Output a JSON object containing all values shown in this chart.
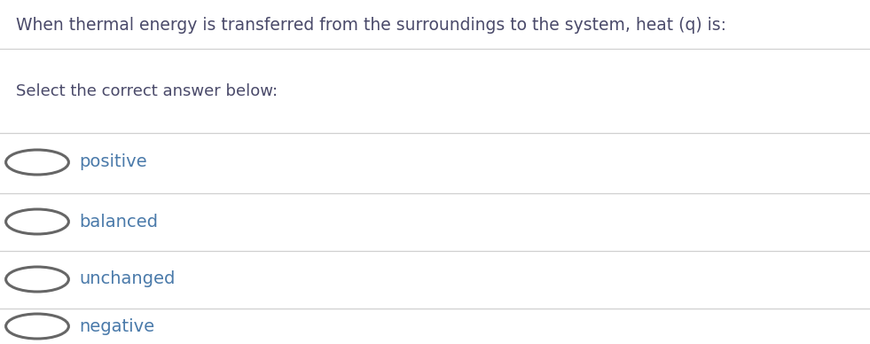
{
  "question": "When thermal energy is transferred from the surroundings to the system, heat (q) is:",
  "instruction": "Select the correct answer below:",
  "options": [
    "positive",
    "balanced",
    "unchanged",
    "negative"
  ],
  "background_color": "#ffffff",
  "question_color": "#4a4a6a",
  "instruction_color": "#4a4a6a",
  "option_color": "#4a7aaa",
  "line_color": "#d0d0d0",
  "question_fontsize": 13.5,
  "instruction_fontsize": 13.0,
  "option_fontsize": 14.0,
  "circle_edge_color": "#666666",
  "circle_face_color": "#ffffff",
  "circle_linewidth": 2.2
}
